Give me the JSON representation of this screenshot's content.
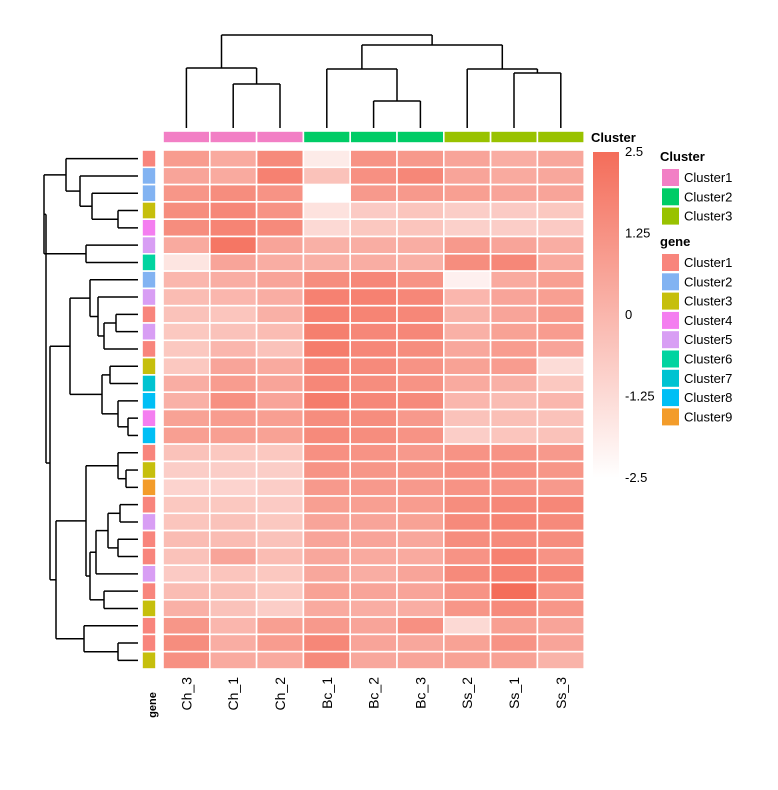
{
  "chart_data": {
    "type": "heatmap",
    "title": "",
    "columns": [
      "Ch_3",
      "Ch_1",
      "Ch_2",
      "Bc_1",
      "Bc_2",
      "Bc_3",
      "Ss_2",
      "Ss_1",
      "Ss_3"
    ],
    "column_clusters": [
      "Cluster1",
      "Cluster1",
      "Cluster1",
      "Cluster2",
      "Cluster2",
      "Cluster2",
      "Cluster3",
      "Cluster3",
      "Cluster3"
    ],
    "row_genes": [
      "Cluster1",
      "Cluster2",
      "Cluster2",
      "Cluster3",
      "Cluster4",
      "Cluster5",
      "Cluster6",
      "Cluster2",
      "Cluster5",
      "Cluster1",
      "Cluster5",
      "Cluster1",
      "Cluster3",
      "Cluster7",
      "Cluster8",
      "Cluster4",
      "Cluster8",
      "Cluster1",
      "Cluster3",
      "Cluster9",
      "Cluster1",
      "Cluster5",
      "Cluster1",
      "Cluster1",
      "Cluster5",
      "Cluster1",
      "Cluster3",
      "Cluster1",
      "Cluster1",
      "Cluster3"
    ],
    "values": [
      [
        0.9,
        0.4,
        1.5,
        -1.8,
        1.2,
        1.0,
        0.6,
        0.3,
        0.5
      ],
      [
        0.6,
        0.4,
        1.8,
        -0.4,
        1.3,
        1.6,
        0.6,
        0.4,
        0.5
      ],
      [
        1.1,
        1.4,
        1.2,
        -2.5,
        1.0,
        1.0,
        0.8,
        0.6,
        0.6
      ],
      [
        1.4,
        1.6,
        1.2,
        -1.5,
        -0.7,
        -0.5,
        -0.8,
        -0.7,
        -0.6
      ],
      [
        1.4,
        1.7,
        1.5,
        -1.2,
        -0.6,
        -0.5,
        -0.9,
        -0.8,
        -0.7
      ],
      [
        0.4,
        2.2,
        0.6,
        0.2,
        0.3,
        0.3,
        1.0,
        0.6,
        0.3
      ],
      [
        -1.6,
        0.6,
        0.3,
        0.2,
        0.3,
        0.2,
        1.4,
        1.6,
        0.4
      ],
      [
        0.0,
        0.3,
        0.6,
        1.4,
        1.6,
        1.2,
        -2.0,
        0.4,
        0.8
      ],
      [
        -0.2,
        0.0,
        0.3,
        1.8,
        1.8,
        1.6,
        0.0,
        0.6,
        0.8
      ],
      [
        -0.4,
        -0.5,
        0.2,
        1.8,
        1.7,
        1.6,
        0.1,
        0.6,
        1.0
      ],
      [
        -0.6,
        -0.4,
        -0.2,
        1.9,
        1.6,
        1.6,
        0.2,
        0.7,
        0.9
      ],
      [
        -0.6,
        0.0,
        -0.4,
        2.0,
        1.6,
        1.4,
        0.5,
        0.9,
        0.6
      ],
      [
        -0.6,
        0.6,
        0.4,
        1.6,
        1.5,
        1.2,
        0.7,
        0.9,
        -1.3
      ],
      [
        0.3,
        0.9,
        0.6,
        1.6,
        1.4,
        1.2,
        0.4,
        0.2,
        -0.6
      ],
      [
        0.2,
        1.3,
        0.6,
        2.0,
        1.6,
        1.5,
        0.0,
        -0.2,
        0.0
      ],
      [
        0.7,
        0.9,
        0.8,
        1.4,
        1.4,
        1.0,
        -0.4,
        -0.3,
        -0.4
      ],
      [
        0.8,
        0.8,
        0.7,
        1.5,
        1.4,
        1.2,
        -0.8,
        -0.5,
        -0.4
      ],
      [
        -0.4,
        -0.6,
        -0.6,
        1.3,
        1.2,
        1.0,
        1.2,
        1.2,
        1.0
      ],
      [
        -0.8,
        -0.8,
        -0.8,
        1.2,
        1.1,
        1.1,
        1.3,
        1.3,
        1.1
      ],
      [
        -1.0,
        -1.0,
        -0.8,
        1.0,
        1.0,
        1.0,
        1.2,
        1.2,
        1.0
      ],
      [
        -0.6,
        -0.6,
        -0.7,
        0.8,
        0.8,
        0.9,
        1.4,
        1.6,
        1.6
      ],
      [
        -0.5,
        -0.4,
        -0.6,
        0.6,
        0.6,
        0.7,
        1.5,
        1.7,
        1.5
      ],
      [
        -0.2,
        -0.2,
        -0.4,
        0.6,
        0.6,
        0.5,
        1.4,
        1.5,
        1.4
      ],
      [
        -0.4,
        0.6,
        -0.2,
        0.5,
        0.4,
        0.4,
        1.2,
        1.8,
        1.2
      ],
      [
        -0.7,
        -0.5,
        -0.6,
        0.5,
        0.3,
        0.6,
        1.5,
        1.8,
        1.6
      ],
      [
        -0.2,
        -0.3,
        -0.6,
        0.7,
        0.6,
        0.6,
        1.2,
        2.5,
        1.2
      ],
      [
        0.2,
        -0.4,
        -0.8,
        0.4,
        0.3,
        0.3,
        1.1,
        1.5,
        1.1
      ],
      [
        1.1,
        0.0,
        0.8,
        1.0,
        0.6,
        1.3,
        -1.2,
        0.8,
        0.6
      ],
      [
        1.4,
        0.3,
        0.9,
        1.6,
        0.6,
        0.5,
        0.7,
        1.2,
        0.6
      ],
      [
        1.3,
        0.4,
        0.4,
        1.5,
        0.5,
        0.6,
        0.7,
        0.7,
        0.1
      ]
    ],
    "color_scale": {
      "low": "#ffffff",
      "high": "#f46d5a",
      "min": -2.5,
      "max": 2.5
    },
    "legend": {
      "scale_title": "Cluster",
      "scale_ticks": [
        "2.5",
        "1.25",
        "0",
        "-1.25",
        "-2.5"
      ],
      "scale_tick_values": [
        2.5,
        1.25,
        0,
        -1.25,
        -2.5
      ],
      "column_title": "Cluster",
      "column_items": [
        {
          "label": "Cluster1",
          "color": "#f27fc5"
        },
        {
          "label": "Cluster2",
          "color": "#00cc66"
        },
        {
          "label": "Cluster3",
          "color": "#99c200"
        }
      ],
      "row_title": "gene",
      "row_items": [
        {
          "label": "Cluster1",
          "color": "#f8857c"
        },
        {
          "label": "Cluster2",
          "color": "#82b3f2"
        },
        {
          "label": "Cluster3",
          "color": "#c6bf0c"
        },
        {
          "label": "Cluster4",
          "color": "#f47ef0"
        },
        {
          "label": "Cluster5",
          "color": "#d89ef4"
        },
        {
          "label": "Cluster6",
          "color": "#00d4a0"
        },
        {
          "label": "Cluster7",
          "color": "#00c3d1"
        },
        {
          "label": "Cluster8",
          "color": "#00bff5"
        },
        {
          "label": "Cluster9",
          "color": "#f39c2a"
        }
      ]
    },
    "row_annotation_label": "gene"
  }
}
